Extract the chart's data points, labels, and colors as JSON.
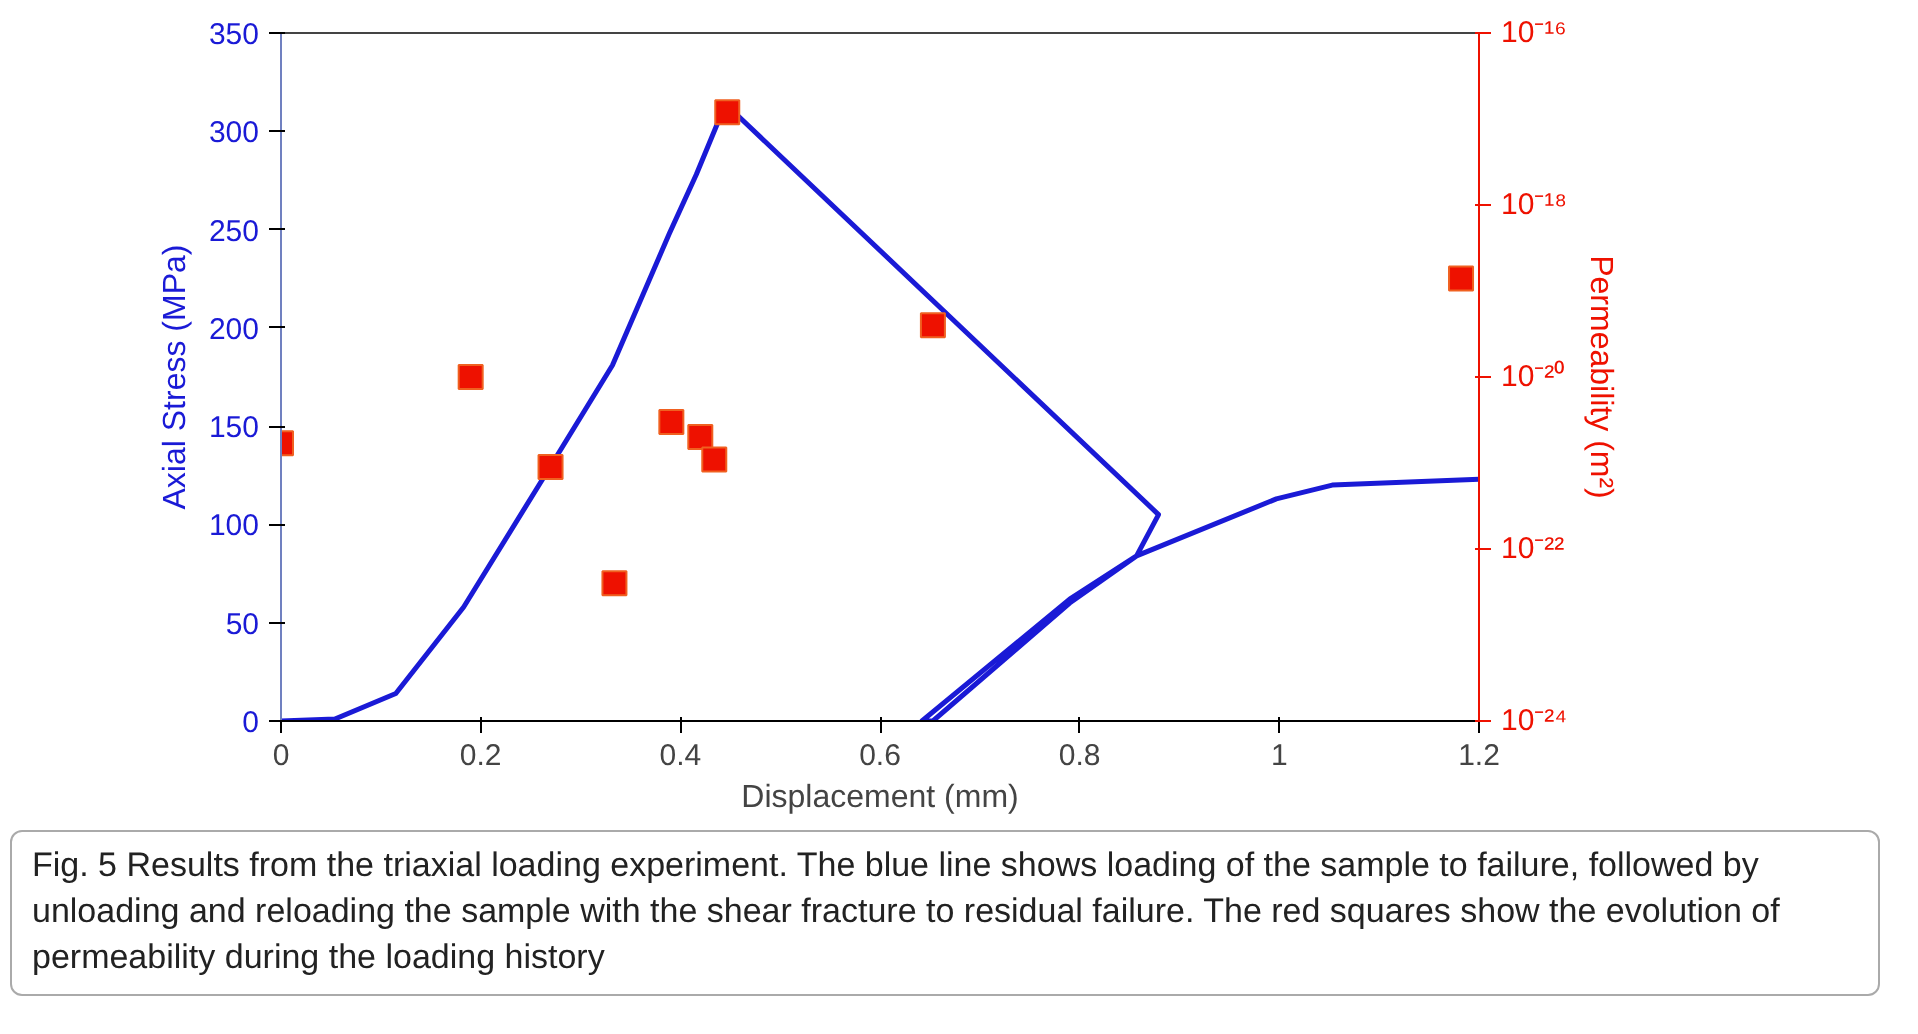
{
  "chart_data": {
    "type": "line",
    "xlabel": "Displacement (mm)",
    "ylabel": "Axial Stress (MPa)",
    "y2label": "Permeability (m²)",
    "annotations": [
      "Fig. 5  Results from the triaxial loading experiment. The blue line shows loading of the sample to failure, followed by unloading and reloading the sample with the shear fracture to residual failure. The red squares show the evolution of permeability during the loading history"
    ],
    "xlim": [
      0,
      1.2
    ],
    "xticks": [
      0,
      0.2,
      0.4,
      0.6,
      0.8,
      1,
      1.2
    ],
    "ylim": [
      0,
      350
    ],
    "yticks": [
      0,
      50,
      100,
      150,
      200,
      250,
      300,
      350
    ],
    "y2lim": [
      1e-24,
      1e-16
    ],
    "y2ticks": [
      {
        "value": 1e-24,
        "label": "10⁻²⁴"
      },
      {
        "value": 1e-22,
        "label": "10⁻²²"
      },
      {
        "value": 1e-20,
        "label": "10⁻²⁰"
      },
      {
        "value": 1e-18,
        "label": "10⁻¹⁸"
      },
      {
        "value": 1e-16,
        "label": "10⁻¹⁶"
      }
    ],
    "log": "y2",
    "grid": false,
    "series": [
      {
        "color": "#1a1ad6",
        "line_style": "solid",
        "marker": "none",
        "x": [
          0,
          0.054,
          0.115,
          0.183,
          0.262,
          0.332,
          0.389,
          0.416,
          0.438,
          0.445,
          0.879,
          0.857,
          0.79,
          0.642,
          0.653,
          0.79,
          0.857,
          0.997,
          1.053,
          1.2
        ],
        "values": [
          0,
          1,
          14,
          58,
          123,
          181,
          248,
          278,
          305,
          314,
          105,
          84,
          62,
          0,
          0,
          60,
          84,
          113,
          120,
          123
        ]
      },
      {
        "type": "scatter",
        "axis": "y2",
        "color": "#ee1100",
        "marker": "square",
        "x": [
          0,
          0.19,
          0.27,
          0.334,
          0.391,
          0.42,
          0.434,
          0.447,
          0.653,
          1.182
        ],
        "values": [
          1.7e-21,
          1e-20,
          9e-22,
          4e-23,
          3e-21,
          2e-21,
          1.1e-21,
          1.2e-17,
          4e-20,
          1.4e-19
        ]
      }
    ]
  }
}
